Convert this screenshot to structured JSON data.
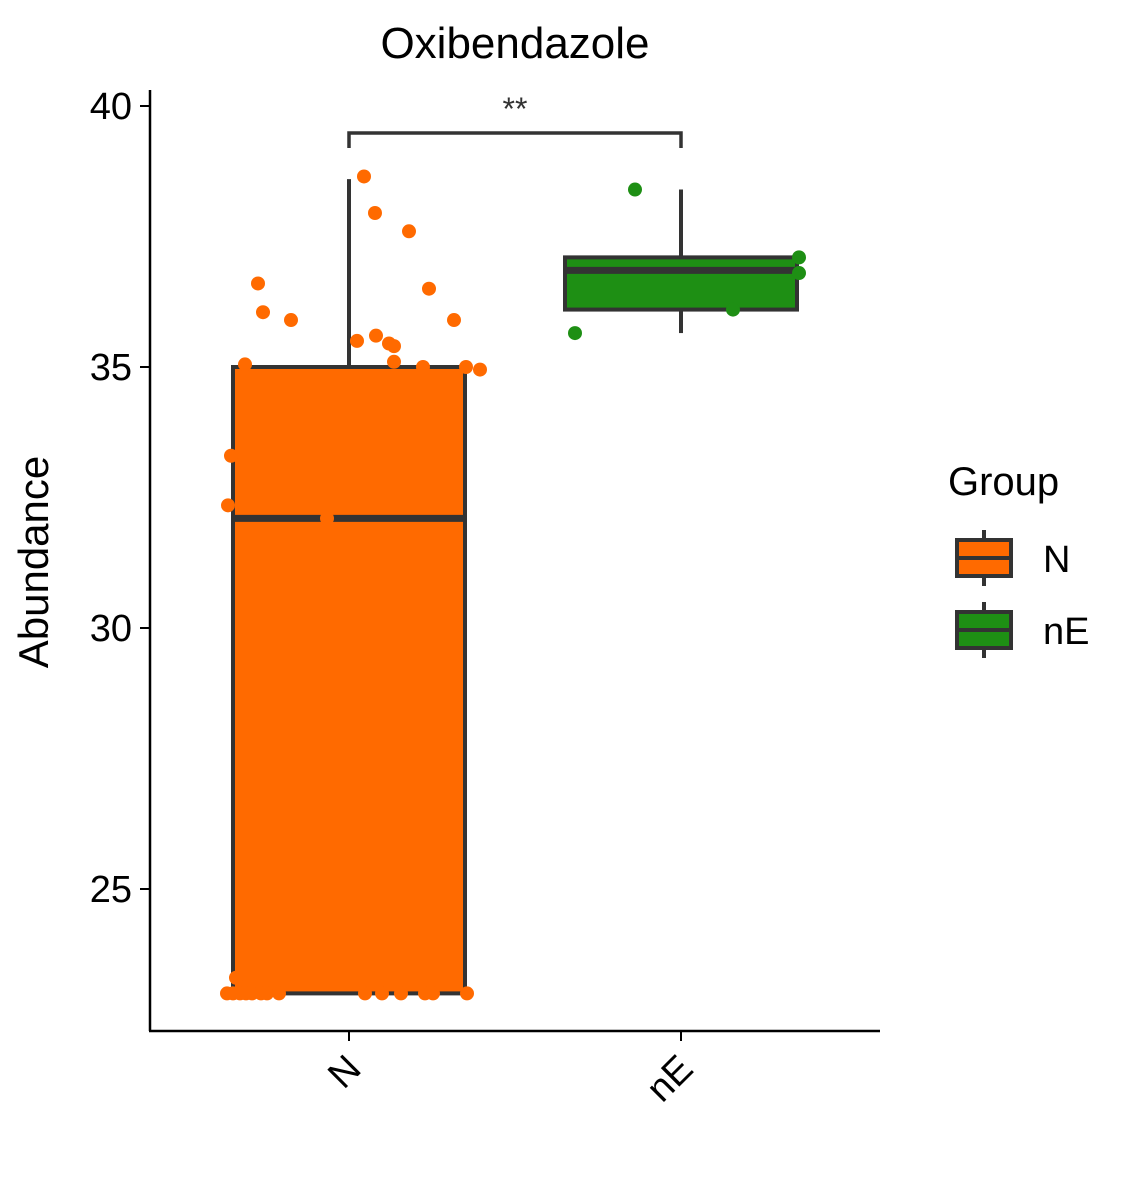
{
  "chart_data": {
    "type": "box",
    "title": "Oxibendazole",
    "xlabel": "",
    "ylabel": "Abundance",
    "categories": [
      "N",
      "nE"
    ],
    "ylim": [
      22.2,
      40.2
    ],
    "yticks": [
      25,
      30,
      35,
      40
    ],
    "grid": false,
    "legend": {
      "title": "Group",
      "position": "right",
      "entries": [
        "N",
        "nE"
      ]
    },
    "colors": {
      "N": "#FF6A00",
      "nE": "#1E8F14",
      "outline": "#333333"
    },
    "boxes": [
      {
        "group": "N",
        "min": 23.0,
        "q1": 23.0,
        "median": 32.1,
        "q3": 35.0,
        "max": 38.6
      },
      {
        "group": "nE",
        "min": 35.65,
        "q1": 36.1,
        "median": 36.85,
        "q3": 37.1,
        "max": 38.4
      }
    ],
    "points": [
      {
        "group": "N",
        "values": [
          38.65,
          37.95,
          37.6,
          36.6,
          36.5,
          36.05,
          35.9,
          35.9,
          35.6,
          35.5,
          35.45,
          35.4,
          35.1,
          35.05,
          35.0,
          34.95,
          35.0,
          33.3,
          32.35,
          32.1,
          23.3,
          23.0,
          23.0,
          23.0,
          23.0,
          23.0,
          23.0,
          23.0,
          23.0,
          23.0,
          23.0,
          23.0,
          23.0,
          23.0,
          23.0
        ]
      },
      {
        "group": "nE",
        "values": [
          38.4,
          37.1,
          36.8,
          36.1,
          35.65
        ]
      }
    ],
    "significance": {
      "label": "**",
      "between": [
        "N",
        "nE"
      ]
    }
  }
}
